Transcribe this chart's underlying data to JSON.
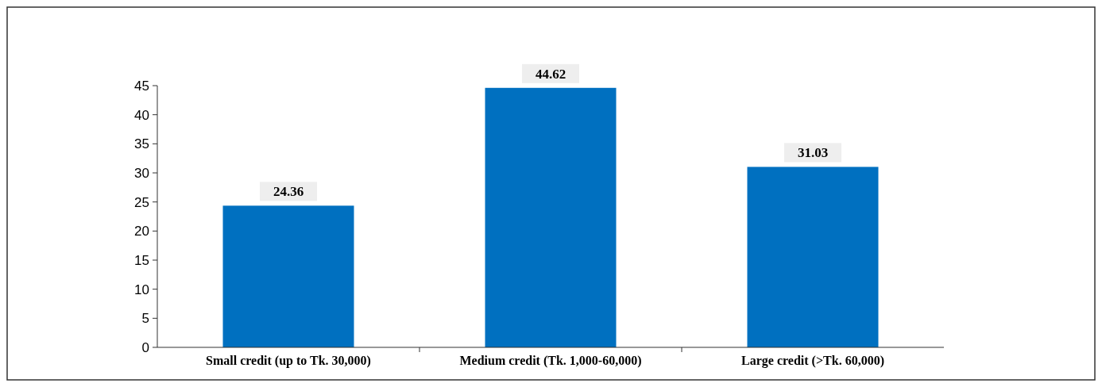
{
  "chart_data": {
    "type": "bar",
    "categories": [
      "Small credit (up to Tk. 30,000)",
      "Medium credit (Tk. 1,000-60,000)",
      "Large credit (>Tk. 60,000)"
    ],
    "values": [
      24.36,
      44.62,
      31.03
    ],
    "color": "#0070c0",
    "ylim": [
      0,
      45
    ],
    "yticks": [
      0,
      5,
      10,
      15,
      20,
      25,
      30,
      35,
      40,
      45
    ],
    "grid": false,
    "data_labels": true
  }
}
